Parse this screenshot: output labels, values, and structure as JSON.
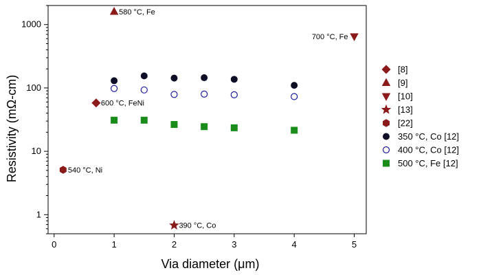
{
  "chart_data": {
    "type": "scatter",
    "xlabel": "Via diameter (μm)",
    "ylabel": "Resistivity (mΩ-cm)",
    "xlim": [
      -0.1,
      5.2
    ],
    "ylim": [
      0.5,
      2000
    ],
    "yscale": "log",
    "grid": false,
    "legend_position": "right",
    "x_ticks": [
      0,
      1,
      2,
      3,
      4,
      5
    ],
    "y_ticks": [
      {
        "value": 1,
        "label": "1"
      },
      {
        "value": 10,
        "label": "10"
      },
      {
        "value": 100,
        "label": "100"
      },
      {
        "value": 1000,
        "label": "1000"
      }
    ],
    "series": [
      {
        "name": "[8]",
        "marker": "diamond",
        "color": "#8B1A1A",
        "filled": true,
        "points": [
          {
            "x": 0.7,
            "y": 58,
            "label": "600 °C, FeNi"
          }
        ]
      },
      {
        "name": "[9]",
        "marker": "triangle-up",
        "color": "#8B1A1A",
        "filled": true,
        "points": [
          {
            "x": 1.0,
            "y": 1600,
            "label": "580 °C, Fe"
          }
        ]
      },
      {
        "name": "[10]",
        "marker": "triangle-down",
        "color": "#8B1A1A",
        "filled": true,
        "points": [
          {
            "x": 5.0,
            "y": 650,
            "label": "700 °C, Fe"
          }
        ]
      },
      {
        "name": "[13]",
        "marker": "star",
        "color": "#8B1A1A",
        "filled": true,
        "points": [
          {
            "x": 2.0,
            "y": 0.68,
            "label": "390 °C, Co"
          }
        ]
      },
      {
        "name": "[22]",
        "marker": "hexagon",
        "color": "#8B1A1A",
        "filled": true,
        "points": [
          {
            "x": 0.15,
            "y": 5.1,
            "label": "540 °C, Ni"
          }
        ]
      },
      {
        "name": "350 °C, Co [12]",
        "marker": "circle",
        "color": "#0d0d26",
        "filled": true,
        "points": [
          {
            "x": 1.0,
            "y": 130
          },
          {
            "x": 1.5,
            "y": 155
          },
          {
            "x": 2.0,
            "y": 143
          },
          {
            "x": 2.5,
            "y": 145
          },
          {
            "x": 3.0,
            "y": 137
          },
          {
            "x": 4.0,
            "y": 110
          }
        ]
      },
      {
        "name": "400 °C, Co [12]",
        "marker": "circle",
        "color": "#1a1aa0",
        "filled": false,
        "points": [
          {
            "x": 1.0,
            "y": 98
          },
          {
            "x": 1.5,
            "y": 93
          },
          {
            "x": 2.0,
            "y": 79
          },
          {
            "x": 2.5,
            "y": 80
          },
          {
            "x": 3.0,
            "y": 78
          },
          {
            "x": 4.0,
            "y": 73
          }
        ]
      },
      {
        "name": "500 °C, Fe [12]",
        "marker": "square",
        "color": "#1a8c1a",
        "filled": true,
        "points": [
          {
            "x": 1.0,
            "y": 31
          },
          {
            "x": 1.5,
            "y": 31
          },
          {
            "x": 2.0,
            "y": 26.5
          },
          {
            "x": 2.5,
            "y": 24.5
          },
          {
            "x": 3.0,
            "y": 23.5
          },
          {
            "x": 4.0,
            "y": 21.5
          }
        ]
      }
    ]
  }
}
